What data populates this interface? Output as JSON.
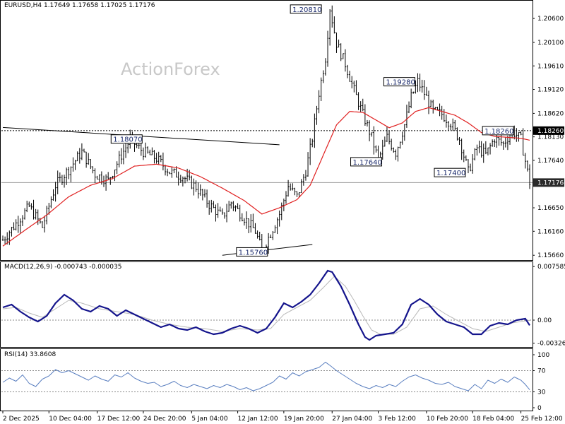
{
  "chart_data": {
    "type": "line",
    "symbol_label": "EURUSD,H4 1.17649 1.17658 1.17025 1.17176",
    "watermark": "ActionForex",
    "colors": {
      "bars": "#000000",
      "moving_average": "#e02020",
      "macd": "#14148c",
      "macd_signal": "#b8b8b8",
      "rsi": "#5a7fc0",
      "level_line": "#888888",
      "callout_text": "#1a2a6c"
    },
    "price_axis": {
      "ylim": [
        1.1556,
        1.2097
      ],
      "ticks": [
        "1.20600",
        "1.20100",
        "1.19610",
        "1.19120",
        "1.18620",
        "1.18130",
        "1.17640",
        "1.17150",
        "1.16650",
        "1.16160",
        "1.15660"
      ]
    },
    "x_axis": {
      "bar_count": 240,
      "labels": [
        {
          "bar": 0,
          "text": "2 Dec 2025"
        },
        {
          "bar": 21,
          "text": "10 Dec 04:00"
        },
        {
          "bar": 43,
          "text": "17 Dec 12:00"
        },
        {
          "bar": 64,
          "text": "24 Dec 20:00"
        },
        {
          "bar": 86,
          "text": "5 Jan 04:00"
        },
        {
          "bar": 107,
          "text": "12 Jan 12:00"
        },
        {
          "bar": 128,
          "text": "19 Jan 20:00"
        },
        {
          "bar": 150,
          "text": "27 Jan 04:00"
        },
        {
          "bar": 171,
          "text": "3 Feb 12:00"
        },
        {
          "bar": 193,
          "text": "10 Feb 20:00"
        },
        {
          "bar": 214,
          "text": "18 Feb 04:00"
        },
        {
          "bar": 236,
          "text": "25 Feb 12:00"
        }
      ]
    },
    "price_path": [
      [
        0,
        1.1598
      ],
      [
        6,
        1.1632
      ],
      [
        12,
        1.1668
      ],
      [
        18,
        1.1625
      ],
      [
        24,
        1.1712
      ],
      [
        30,
        1.1745
      ],
      [
        36,
        1.1782
      ],
      [
        42,
        1.1735
      ],
      [
        48,
        1.1722
      ],
      [
        54,
        1.1775
      ],
      [
        58,
        1.1807
      ],
      [
        64,
        1.1782
      ],
      [
        70,
        1.1768
      ],
      [
        76,
        1.174
      ],
      [
        82,
        1.173
      ],
      [
        88,
        1.1708
      ],
      [
        94,
        1.1672
      ],
      [
        100,
        1.1646
      ],
      [
        104,
        1.1676
      ],
      [
        110,
        1.1644
      ],
      [
        115,
        1.1616
      ],
      [
        118,
        1.1576
      ],
      [
        122,
        1.1612
      ],
      [
        126,
        1.1652
      ],
      [
        130,
        1.171
      ],
      [
        134,
        1.1688
      ],
      [
        138,
        1.1742
      ],
      [
        141,
        1.181
      ],
      [
        144,
        1.1905
      ],
      [
        147,
        1.1978
      ],
      [
        149,
        1.2081
      ],
      [
        152,
        1.2008
      ],
      [
        156,
        1.1965
      ],
      [
        160,
        1.191
      ],
      [
        164,
        1.186
      ],
      [
        168,
        1.1812
      ],
      [
        171,
        1.1764
      ],
      [
        175,
        1.1812
      ],
      [
        179,
        1.178
      ],
      [
        183,
        1.1838
      ],
      [
        186,
        1.1896
      ],
      [
        189,
        1.1928
      ],
      [
        192,
        1.1904
      ],
      [
        196,
        1.1866
      ],
      [
        200,
        1.186
      ],
      [
        204,
        1.1842
      ],
      [
        208,
        1.1808
      ],
      [
        212,
        1.174
      ],
      [
        216,
        1.179
      ],
      [
        220,
        1.1776
      ],
      [
        224,
        1.181
      ],
      [
        228,
        1.1798
      ],
      [
        232,
        1.1826
      ],
      [
        236,
        1.1808
      ],
      [
        240,
        1.17176
      ]
    ],
    "moving_average": [
      [
        0,
        1.1585
      ],
      [
        10,
        1.1618
      ],
      [
        20,
        1.165
      ],
      [
        30,
        1.1688
      ],
      [
        40,
        1.1712
      ],
      [
        50,
        1.1726
      ],
      [
        60,
        1.1752
      ],
      [
        70,
        1.1756
      ],
      [
        80,
        1.1748
      ],
      [
        90,
        1.173
      ],
      [
        100,
        1.1706
      ],
      [
        110,
        1.168
      ],
      [
        118,
        1.1652
      ],
      [
        126,
        1.1665
      ],
      [
        134,
        1.1682
      ],
      [
        140,
        1.1712
      ],
      [
        146,
        1.1775
      ],
      [
        152,
        1.1838
      ],
      [
        158,
        1.1866
      ],
      [
        164,
        1.1864
      ],
      [
        170,
        1.1848
      ],
      [
        176,
        1.1832
      ],
      [
        182,
        1.1842
      ],
      [
        188,
        1.1866
      ],
      [
        194,
        1.1874
      ],
      [
        200,
        1.1866
      ],
      [
        206,
        1.1858
      ],
      [
        212,
        1.1842
      ],
      [
        218,
        1.1822
      ],
      [
        224,
        1.1814
      ],
      [
        230,
        1.1812
      ],
      [
        236,
        1.181
      ],
      [
        240,
        1.1806
      ]
    ],
    "trendlines": [
      {
        "from": [
          0,
          1.18325
        ],
        "to": [
          126,
          1.17965
        ]
      },
      {
        "from": [
          100,
          1.1566
        ],
        "to": [
          141,
          1.15885
        ]
      }
    ],
    "levels": {
      "resistance_line": 1.1826,
      "current_price": 1.17176,
      "current_price_label": "1.17176",
      "resistance_label": "1.18260"
    },
    "annotations": [
      {
        "text": "1.20810",
        "bar": 149,
        "price": 1.2081
      },
      {
        "text": "1.19280",
        "bar": 189,
        "price": 1.1928
      },
      {
        "text": "1.18260",
        "bar": 232,
        "price": 1.1826
      },
      {
        "text": "1.18070",
        "bar": 58,
        "price": 1.1807
      },
      {
        "text": "1.17640",
        "bar": 171,
        "price": 1.1764
      },
      {
        "text": "1.17400",
        "bar": 212,
        "price": 1.174
      },
      {
        "text": "1.15760",
        "bar": 118,
        "price": 1.1576
      }
    ],
    "macd": {
      "label": "MACD(12,26,9) -0.000743 -0.000035",
      "ylim": [
        -0.0038,
        0.0082
      ],
      "ticks": [
        {
          "value": 0.007585,
          "text": "0.007585"
        },
        {
          "value": 0.0,
          "text": "0.00"
        },
        {
          "value": -0.003264,
          "text": "-0.003264"
        }
      ],
      "main": [
        [
          0,
          0.0018
        ],
        [
          4,
          0.0022
        ],
        [
          8,
          0.0012
        ],
        [
          12,
          0.0004
        ],
        [
          16,
          -0.0002
        ],
        [
          20,
          0.0006
        ],
        [
          24,
          0.0024
        ],
        [
          28,
          0.0036
        ],
        [
          32,
          0.0028
        ],
        [
          36,
          0.0016
        ],
        [
          40,
          0.0012
        ],
        [
          44,
          0.002
        ],
        [
          48,
          0.0016
        ],
        [
          52,
          0.0006
        ],
        [
          56,
          0.0014
        ],
        [
          60,
          0.0008
        ],
        [
          64,
          0.0002
        ],
        [
          68,
          -0.0004
        ],
        [
          72,
          -0.001
        ],
        [
          76,
          -0.0006
        ],
        [
          80,
          -0.0012
        ],
        [
          84,
          -0.0014
        ],
        [
          88,
          -0.001
        ],
        [
          92,
          -0.0016
        ],
        [
          96,
          -0.002
        ],
        [
          100,
          -0.0018
        ],
        [
          104,
          -0.0012
        ],
        [
          108,
          -0.0008
        ],
        [
          112,
          -0.0012
        ],
        [
          116,
          -0.0018
        ],
        [
          120,
          -0.0012
        ],
        [
          124,
          0.0004
        ],
        [
          128,
          0.0024
        ],
        [
          132,
          0.0018
        ],
        [
          136,
          0.0026
        ],
        [
          140,
          0.0036
        ],
        [
          144,
          0.0052
        ],
        [
          148,
          0.007
        ],
        [
          150,
          0.0068
        ],
        [
          154,
          0.0048
        ],
        [
          158,
          0.0022
        ],
        [
          162,
          -0.0006
        ],
        [
          165,
          -0.0024
        ],
        [
          167,
          -0.0028
        ],
        [
          170,
          -0.0022
        ],
        [
          174,
          -0.002
        ],
        [
          178,
          -0.0018
        ],
        [
          182,
          -0.0006
        ],
        [
          186,
          0.0022
        ],
        [
          190,
          0.003
        ],
        [
          194,
          0.0022
        ],
        [
          198,
          0.0008
        ],
        [
          202,
          -0.0002
        ],
        [
          206,
          -0.0006
        ],
        [
          210,
          -0.001
        ],
        [
          214,
          -0.002
        ],
        [
          218,
          -0.002
        ],
        [
          222,
          -0.0008
        ],
        [
          226,
          -0.0004
        ],
        [
          230,
          -0.0006
        ],
        [
          234,
          0.0
        ],
        [
          238,
          0.0002
        ],
        [
          240,
          -0.000743
        ]
      ],
      "signal": [
        [
          0,
          0.0016
        ],
        [
          6,
          0.0018
        ],
        [
          12,
          0.001
        ],
        [
          18,
          0.0004
        ],
        [
          24,
          0.0016
        ],
        [
          30,
          0.0028
        ],
        [
          36,
          0.0024
        ],
        [
          44,
          0.0016
        ],
        [
          52,
          0.0012
        ],
        [
          60,
          0.0008
        ],
        [
          68,
          0.0
        ],
        [
          76,
          -0.0006
        ],
        [
          84,
          -0.001
        ],
        [
          92,
          -0.0012
        ],
        [
          100,
          -0.0016
        ],
        [
          108,
          -0.0012
        ],
        [
          116,
          -0.0014
        ],
        [
          122,
          -0.0012
        ],
        [
          128,
          0.0008
        ],
        [
          134,
          0.0018
        ],
        [
          140,
          0.0028
        ],
        [
          146,
          0.0046
        ],
        [
          151,
          0.0062
        ],
        [
          156,
          0.0048
        ],
        [
          160,
          0.0028
        ],
        [
          164,
          0.0006
        ],
        [
          168,
          -0.0014
        ],
        [
          172,
          -0.002
        ],
        [
          178,
          -0.002
        ],
        [
          184,
          -0.001
        ],
        [
          190,
          0.0016
        ],
        [
          196,
          0.002
        ],
        [
          202,
          0.0008
        ],
        [
          208,
          -0.0002
        ],
        [
          214,
          -0.0012
        ],
        [
          220,
          -0.0016
        ],
        [
          226,
          -0.001
        ],
        [
          232,
          -0.0004
        ],
        [
          238,
          -0.0001
        ],
        [
          240,
          -3.5e-05
        ]
      ]
    },
    "rsi": {
      "label": "RSI(14) 33.8608",
      "ylim": [
        0,
        100
      ],
      "ticks": [
        {
          "value": 100,
          "text": "100"
        },
        {
          "value": 70,
          "text": "70"
        },
        {
          "value": 30,
          "text": "30"
        },
        {
          "value": 0,
          "text": "0"
        }
      ],
      "levels": [
        70,
        30
      ],
      "values": [
        [
          0,
          48
        ],
        [
          3,
          56
        ],
        [
          6,
          50
        ],
        [
          9,
          62
        ],
        [
          12,
          46
        ],
        [
          15,
          40
        ],
        [
          18,
          54
        ],
        [
          21,
          60
        ],
        [
          24,
          72
        ],
        [
          27,
          66
        ],
        [
          30,
          70
        ],
        [
          33,
          64
        ],
        [
          36,
          58
        ],
        [
          39,
          52
        ],
        [
          42,
          60
        ],
        [
          45,
          54
        ],
        [
          48,
          50
        ],
        [
          51,
          62
        ],
        [
          54,
          58
        ],
        [
          57,
          66
        ],
        [
          60,
          56
        ],
        [
          63,
          50
        ],
        [
          66,
          46
        ],
        [
          69,
          48
        ],
        [
          72,
          40
        ],
        [
          75,
          44
        ],
        [
          78,
          50
        ],
        [
          81,
          42
        ],
        [
          84,
          38
        ],
        [
          87,
          44
        ],
        [
          90,
          40
        ],
        [
          93,
          36
        ],
        [
          96,
          42
        ],
        [
          99,
          38
        ],
        [
          102,
          44
        ],
        [
          105,
          40
        ],
        [
          108,
          34
        ],
        [
          111,
          38
        ],
        [
          114,
          32
        ],
        [
          117,
          36
        ],
        [
          120,
          42
        ],
        [
          123,
          48
        ],
        [
          126,
          60
        ],
        [
          129,
          54
        ],
        [
          132,
          66
        ],
        [
          135,
          60
        ],
        [
          138,
          68
        ],
        [
          141,
          72
        ],
        [
          144,
          76
        ],
        [
          147,
          86
        ],
        [
          149,
          80
        ],
        [
          152,
          70
        ],
        [
          155,
          62
        ],
        [
          158,
          54
        ],
        [
          161,
          46
        ],
        [
          164,
          40
        ],
        [
          167,
          36
        ],
        [
          170,
          42
        ],
        [
          173,
          38
        ],
        [
          176,
          44
        ],
        [
          179,
          40
        ],
        [
          182,
          50
        ],
        [
          185,
          58
        ],
        [
          188,
          62
        ],
        [
          191,
          56
        ],
        [
          194,
          52
        ],
        [
          197,
          46
        ],
        [
          200,
          44
        ],
        [
          203,
          48
        ],
        [
          206,
          40
        ],
        [
          209,
          36
        ],
        [
          212,
          32
        ],
        [
          215,
          44
        ],
        [
          218,
          36
        ],
        [
          221,
          52
        ],
        [
          224,
          46
        ],
        [
          227,
          54
        ],
        [
          230,
          48
        ],
        [
          233,
          58
        ],
        [
          236,
          52
        ],
        [
          238,
          44
        ],
        [
          240,
          33.8608
        ]
      ]
    }
  }
}
